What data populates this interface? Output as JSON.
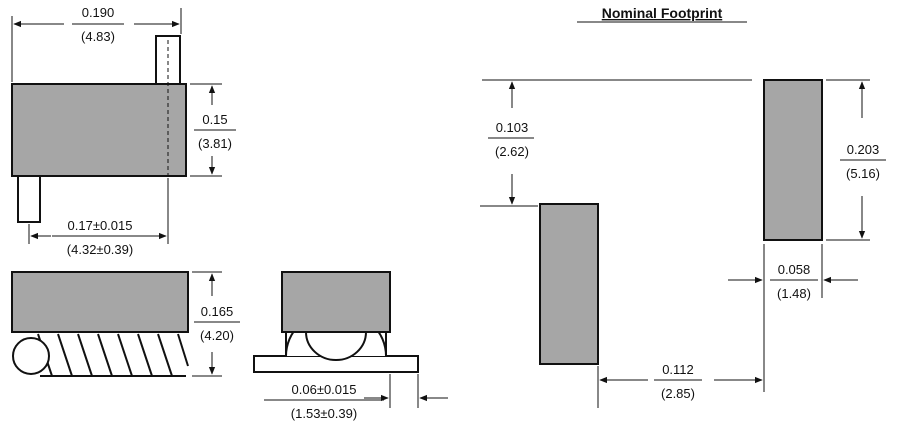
{
  "footprint_title": "Nominal Footprint",
  "dims": {
    "overall_length": {
      "in": "0.190",
      "mm": "(4.83)"
    },
    "body_height": {
      "in": "0.15",
      "mm": "(3.81)"
    },
    "lead_span": {
      "in": "0.17±0.015",
      "mm": "(4.32±0.39)"
    },
    "side_height": {
      "in": "0.165",
      "mm": "(4.20)"
    },
    "lead_width": {
      "in": "0.06±0.015",
      "mm": "(1.53±0.39)"
    },
    "pad_offset": {
      "in": "0.103",
      "mm": "(2.62)"
    },
    "pad_length": {
      "in": "0.203",
      "mm": "(5.16)"
    },
    "pad_width": {
      "in": "0.058",
      "mm": "(1.48)"
    },
    "pad_gap": {
      "in": "0.112",
      "mm": "(2.85)"
    }
  }
}
